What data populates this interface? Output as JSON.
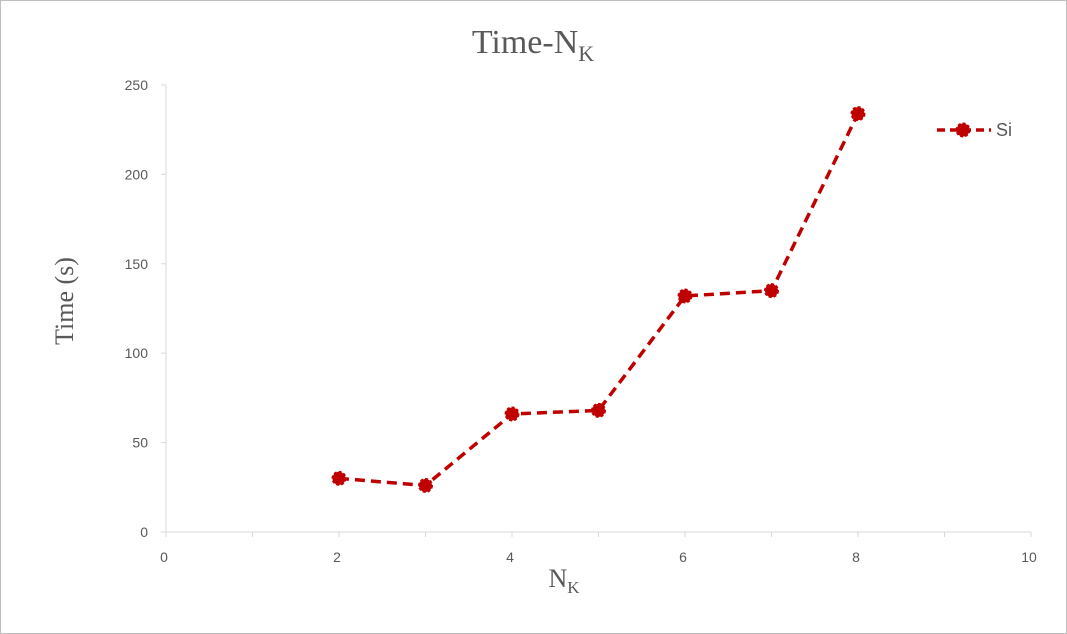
{
  "chart_data": {
    "type": "line",
    "title": "Time-N",
    "title_subscript": "K",
    "xlabel": "N",
    "xlabel_subscript": "K",
    "ylabel": "Time (s)",
    "xlim": [
      0,
      10
    ],
    "ylim": [
      0,
      250
    ],
    "xticks": [
      "0",
      "2",
      "4",
      "6",
      "8",
      "10"
    ],
    "yticks": [
      "0",
      "50",
      "100",
      "150",
      "200",
      "250"
    ],
    "grid": false,
    "legend_position": "top-right",
    "series": [
      {
        "name": "Si",
        "color": "#c00000",
        "line_style": "dashed",
        "marker": "circle",
        "x": [
          2,
          3,
          4,
          5,
          6,
          7,
          8
        ],
        "y": [
          30,
          26,
          66,
          68,
          132,
          135,
          234
        ]
      }
    ]
  }
}
